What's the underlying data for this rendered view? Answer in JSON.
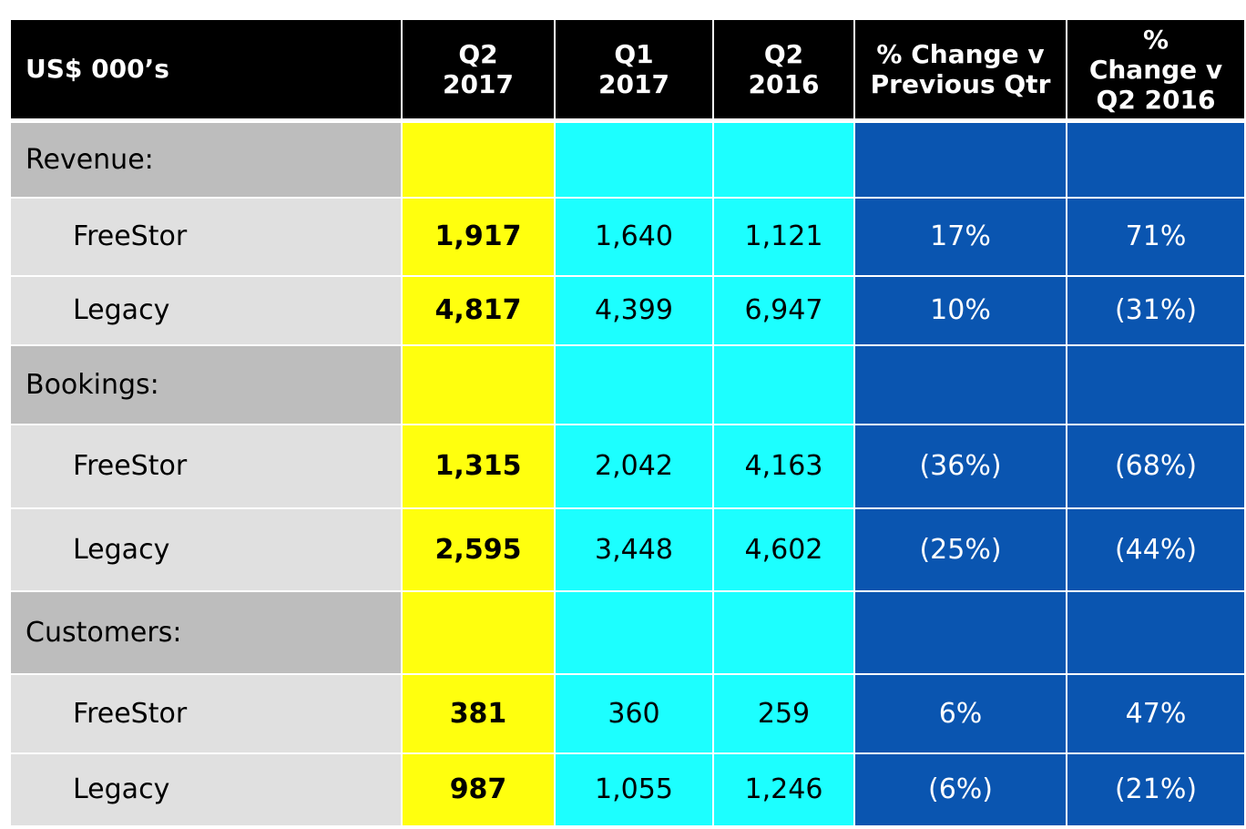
{
  "table": {
    "headers": {
      "label": "US$ 000’s",
      "q2_2017": [
        "Q2",
        "2017"
      ],
      "q1_2017": [
        "Q1",
        "2017"
      ],
      "q2_2016": [
        "Q2",
        "2016"
      ],
      "pct_prev_qtr": [
        "% Change v",
        "Previous Qtr"
      ],
      "pct_q2_2016": [
        "%",
        "Change v",
        "Q2 2016"
      ]
    },
    "sections": [
      {
        "label": "Revenue:",
        "rows": [
          {
            "label": "FreeStor",
            "q2_2017": "1,917",
            "q1_2017": "1,640",
            "q2_2016": "1,121",
            "pct_prev_qtr": "17%",
            "pct_q2_2016": "71%"
          },
          {
            "label": "Legacy",
            "q2_2017": "4,817",
            "q1_2017": "4,399",
            "q2_2016": "6,947",
            "pct_prev_qtr": "10%",
            "pct_q2_2016": "(31%)"
          }
        ]
      },
      {
        "label": "Bookings:",
        "rows": [
          {
            "label": "FreeStor",
            "q2_2017": "1,315",
            "q1_2017": "2,042",
            "q2_2016": "4,163",
            "pct_prev_qtr": "(36%)",
            "pct_q2_2016": "(68%)"
          },
          {
            "label": "Legacy",
            "q2_2017": "2,595",
            "q1_2017": "3,448",
            "q2_2016": "4,602",
            "pct_prev_qtr": "(25%)",
            "pct_q2_2016": "(44%)"
          }
        ]
      },
      {
        "label": "Customers:",
        "rows": [
          {
            "label": "FreeStor",
            "q2_2017": "381",
            "q1_2017": "360",
            "q2_2016": "259",
            "pct_prev_qtr": "6%",
            "pct_q2_2016": "47%"
          },
          {
            "label": "Legacy",
            "q2_2017": "987",
            "q1_2017": "1,055",
            "q2_2016": "1,246",
            "pct_prev_qtr": "(6%)",
            "pct_q2_2016": "(21%)"
          }
        ]
      }
    ]
  },
  "colors": {
    "header_bg": "#000000",
    "section_label_bg": "#bdbdbd",
    "item_label_bg": "#e0e0e0",
    "q2_2017_bg": "#ffff0e",
    "prior_periods_bg": "#1cffff",
    "pct_change_bg": "#0a55b0"
  }
}
